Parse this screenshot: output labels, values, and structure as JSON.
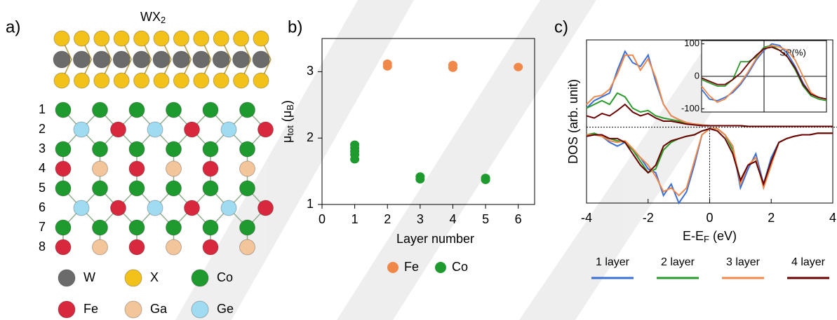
{
  "structure": {
    "panel_label": "a)",
    "title": [
      "WX",
      "2"
    ],
    "layers": [
      "1",
      "2",
      "3",
      "4",
      "5",
      "6",
      "7",
      "8"
    ],
    "legend": [
      {
        "label": "W",
        "color": "#6b6b6b"
      },
      {
        "label": "X",
        "color": "#f2c21a"
      },
      {
        "label": "Co",
        "color": "#1f9a2f"
      },
      {
        "label": "Fe",
        "color": "#d8283e"
      },
      {
        "label": "Ga",
        "color": "#f3c59a"
      },
      {
        "label": "Ge",
        "color": "#9fdcf2"
      }
    ]
  },
  "chart_data": [
    {
      "type": "scatter",
      "panel_label": "b)",
      "x_label": "Layer number",
      "y_label": [
        "μ",
        "tot",
        " (μ",
        "B",
        ")"
      ],
      "xlim": [
        0,
        6.5
      ],
      "ylim": [
        1,
        3.5
      ],
      "xticks": [
        0,
        1,
        2,
        3,
        4,
        5,
        6
      ],
      "yticks": [
        1,
        2,
        3
      ],
      "series": [
        {
          "name": "Fe",
          "color": "#f0884a",
          "x": [
            2,
            2,
            4,
            4,
            6
          ],
          "values": [
            3.08,
            3.12,
            3.06,
            3.1,
            3.07
          ]
        },
        {
          "name": "Co",
          "color": "#1f9a2f",
          "x": [
            1,
            1,
            1,
            1,
            1,
            3,
            3,
            5,
            5
          ],
          "values": [
            1.68,
            1.75,
            1.8,
            1.85,
            1.9,
            1.38,
            1.42,
            1.37,
            1.4
          ]
        }
      ]
    },
    {
      "type": "line",
      "panel_label": "c)",
      "x_label": [
        "E-E",
        "F",
        " (eV)"
      ],
      "y_label": "DOS (arb. unit)",
      "xlim": [
        -4,
        4
      ],
      "ylim": [
        -1,
        1.15
      ],
      "xticks": [
        -4,
        -2,
        0,
        2,
        4
      ],
      "x": [
        -4,
        -3.75,
        -3.5,
        -3.25,
        -3,
        -2.75,
        -2.5,
        -2.25,
        -2,
        -1.75,
        -1.5,
        -1.25,
        -1,
        -0.75,
        -0.5,
        -0.25,
        0,
        0.25,
        0.5,
        0.75,
        1,
        1.25,
        1.5,
        1.75,
        2,
        2.25,
        2.5,
        2.75,
        3,
        3.25,
        3.5,
        3.75,
        4
      ],
      "series": [
        {
          "name": "1 layer",
          "color": "#3a6fd8",
          "values": [
            0.25,
            0.35,
            0.4,
            0.45,
            0.75,
            1.0,
            0.85,
            0.8,
            0.95,
            0.6,
            0.3,
            0.15,
            0.1,
            0.06,
            0.04,
            0.03,
            0.02,
            0.02,
            0.02,
            0.02,
            0.02,
            0.01,
            0.01,
            0.01,
            0.01,
            0.01,
            0.01,
            0.01,
            0.01,
            0.01,
            0.01,
            0.01,
            0.01
          ],
          "values_down": [
            -0.12,
            -0.1,
            -0.12,
            -0.2,
            -0.25,
            -0.2,
            -0.3,
            -0.4,
            -0.55,
            -0.6,
            -0.9,
            -0.75,
            -1.0,
            -0.85,
            -0.5,
            -0.1,
            -0.02,
            -0.02,
            -0.1,
            -0.25,
            -0.8,
            -0.55,
            -0.35,
            -0.75,
            -0.4,
            -0.2,
            -0.15,
            -0.12,
            -0.1,
            -0.1,
            -0.08,
            -0.08,
            -0.08
          ]
        },
        {
          "name": "2 layer",
          "color": "#2a9a2a",
          "values": [
            0.25,
            0.3,
            0.35,
            0.3,
            0.45,
            0.4,
            0.25,
            0.2,
            0.22,
            0.15,
            0.12,
            0.1,
            0.08,
            0.05,
            0.04,
            0.03,
            0.02,
            0.02,
            0.02,
            0.02,
            0.02,
            0.01,
            0.01,
            0.01,
            0.01,
            0.01,
            0.01,
            0.01,
            0.01,
            0.01,
            0.01,
            0.01,
            0.01
          ],
          "values_down": [
            -0.1,
            -0.08,
            -0.12,
            -0.15,
            -0.18,
            -0.2,
            -0.3,
            -0.45,
            -0.6,
            -0.55,
            -0.3,
            -0.2,
            -0.15,
            -0.12,
            -0.1,
            -0.05,
            -0.02,
            -0.02,
            -0.1,
            -0.3,
            -0.7,
            -0.5,
            -0.45,
            -0.75,
            -0.45,
            -0.2,
            -0.15,
            -0.12,
            -0.1,
            -0.1,
            -0.08,
            -0.08,
            -0.08
          ]
        },
        {
          "name": "3 layer",
          "color": "#f0884a",
          "values": [
            0.3,
            0.4,
            0.42,
            0.5,
            0.7,
            0.95,
            0.95,
            0.75,
            0.9,
            0.65,
            0.3,
            0.15,
            0.1,
            0.06,
            0.04,
            0.03,
            0.02,
            0.02,
            0.02,
            0.02,
            0.02,
            0.01,
            0.01,
            0.01,
            0.01,
            0.01,
            0.01,
            0.01,
            0.01,
            0.01,
            0.01,
            0.01,
            0.01
          ],
          "values_down": [
            -0.1,
            -0.1,
            -0.12,
            -0.18,
            -0.2,
            -0.18,
            -0.28,
            -0.4,
            -0.5,
            -0.65,
            -0.85,
            -0.8,
            -0.9,
            -0.8,
            -0.45,
            -0.1,
            -0.02,
            -0.02,
            -0.1,
            -0.25,
            -0.75,
            -0.5,
            -0.4,
            -0.8,
            -0.5,
            -0.2,
            -0.15,
            -0.12,
            -0.1,
            -0.1,
            -0.08,
            -0.08,
            -0.08
          ]
        },
        {
          "name": "4 layer",
          "color": "#6b0000",
          "values": [
            0.15,
            0.12,
            0.18,
            0.15,
            0.22,
            0.3,
            0.2,
            0.15,
            0.18,
            0.12,
            0.08,
            0.08,
            0.06,
            0.04,
            0.03,
            0.02,
            0.02,
            0.02,
            0.02,
            0.02,
            0.02,
            0.01,
            0.01,
            0.01,
            0.01,
            0.01,
            0.01,
            0.01,
            0.01,
            0.01,
            0.01,
            0.01,
            0.01
          ],
          "values_down": [
            -0.12,
            -0.1,
            -0.1,
            -0.15,
            -0.15,
            -0.2,
            -0.35,
            -0.5,
            -0.6,
            -0.5,
            -0.25,
            -0.18,
            -0.15,
            -0.12,
            -0.1,
            -0.05,
            -0.02,
            -0.05,
            -0.15,
            -0.35,
            -0.7,
            -0.5,
            -0.45,
            -0.75,
            -0.45,
            -0.2,
            -0.15,
            -0.12,
            -0.1,
            -0.1,
            -0.08,
            -0.08,
            -0.08
          ]
        }
      ]
    },
    {
      "type": "line",
      "annotation": "SP(%)",
      "xlim": [
        -2,
        2
      ],
      "ylim": [
        -110,
        110
      ],
      "yticks": [
        -100,
        0,
        100
      ],
      "x": [
        -2,
        -1.75,
        -1.5,
        -1.25,
        -1,
        -0.75,
        -0.5,
        -0.25,
        0,
        0.25,
        0.5,
        0.75,
        1,
        1.25,
        1.5,
        1.75,
        2
      ],
      "series": [
        {
          "color": "#3a6fd8",
          "values": [
            -40,
            -70,
            -75,
            -65,
            -50,
            -25,
            10,
            50,
            80,
            100,
            95,
            70,
            30,
            -20,
            -55,
            -65,
            -70
          ]
        },
        {
          "color": "#2a9a2a",
          "values": [
            -10,
            -20,
            -30,
            -30,
            -10,
            45,
            45,
            60,
            90,
            95,
            80,
            60,
            20,
            -30,
            -60,
            -70,
            -75
          ]
        },
        {
          "color": "#f0884a",
          "values": [
            -30,
            -60,
            -80,
            -70,
            -45,
            -20,
            15,
            55,
            85,
            95,
            90,
            80,
            50,
            0,
            -50,
            -65,
            -70
          ]
        },
        {
          "color": "#6b0000",
          "values": [
            -5,
            -15,
            -25,
            -25,
            -10,
            10,
            40,
            65,
            85,
            90,
            80,
            60,
            25,
            -25,
            -55,
            -65,
            -70
          ]
        }
      ]
    }
  ]
}
